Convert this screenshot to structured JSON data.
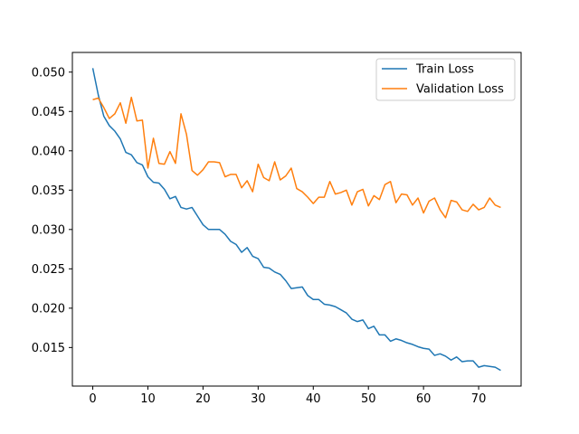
{
  "chart_data": {
    "type": "line",
    "title": "",
    "xlabel": "",
    "ylabel": "",
    "xlim": [
      -3.7,
      77.7
    ],
    "ylim": [
      0.0101,
      0.0525
    ],
    "x_ticks": [
      0,
      10,
      20,
      30,
      40,
      50,
      60,
      70
    ],
    "y_ticks": [
      0.015,
      0.02,
      0.025,
      0.03,
      0.035,
      0.04,
      0.045,
      0.05
    ],
    "x_tick_labels": [
      "0",
      "10",
      "20",
      "30",
      "40",
      "50",
      "60",
      "70"
    ],
    "y_tick_labels": [
      "0.015",
      "0.020",
      "0.025",
      "0.030",
      "0.035",
      "0.040",
      "0.045",
      "0.050"
    ],
    "grid": false,
    "legend": {
      "placement": "top-right"
    },
    "series": [
      {
        "name": "Train Loss",
        "color": "#1f77b4",
        "x": [
          0,
          1,
          2,
          3,
          4,
          5,
          6,
          7,
          8,
          9,
          10,
          11,
          12,
          13,
          14,
          15,
          16,
          17,
          18,
          19,
          20,
          21,
          22,
          23,
          24,
          25,
          26,
          27,
          28,
          29,
          30,
          31,
          32,
          33,
          34,
          35,
          36,
          37,
          38,
          39,
          40,
          41,
          42,
          43,
          44,
          45,
          46,
          47,
          48,
          49,
          50,
          51,
          52,
          53,
          54,
          55,
          56,
          57,
          58,
          59,
          60,
          61,
          62,
          63,
          64,
          65,
          66,
          67,
          68,
          69,
          70,
          71,
          72,
          73,
          74
        ],
        "values": [
          0.0505,
          0.0471,
          0.0444,
          0.0432,
          0.0425,
          0.0415,
          0.0398,
          0.0395,
          0.0385,
          0.0382,
          0.0367,
          0.036,
          0.0359,
          0.0351,
          0.0339,
          0.0342,
          0.0328,
          0.0326,
          0.0328,
          0.0317,
          0.0306,
          0.03,
          0.03,
          0.03,
          0.0294,
          0.0285,
          0.0281,
          0.0271,
          0.0277,
          0.0266,
          0.0263,
          0.0252,
          0.0251,
          0.0246,
          0.0243,
          0.0235,
          0.0225,
          0.0226,
          0.0227,
          0.0216,
          0.0211,
          0.0211,
          0.0205,
          0.0204,
          0.0202,
          0.0198,
          0.0194,
          0.0186,
          0.0183,
          0.0185,
          0.0174,
          0.0177,
          0.0166,
          0.0166,
          0.0158,
          0.0161,
          0.0159,
          0.0156,
          0.0154,
          0.0151,
          0.0149,
          0.0148,
          0.014,
          0.0142,
          0.0139,
          0.0134,
          0.0138,
          0.0132,
          0.0133,
          0.0133,
          0.0125,
          0.0127,
          0.0126,
          0.0125,
          0.0121
        ]
      },
      {
        "name": "Validation Loss",
        "color": "#ff7f0e",
        "x": [
          0,
          1,
          2,
          3,
          4,
          5,
          6,
          7,
          8,
          9,
          10,
          11,
          12,
          13,
          14,
          15,
          16,
          17,
          18,
          19,
          20,
          21,
          22,
          23,
          24,
          25,
          26,
          27,
          28,
          29,
          30,
          31,
          32,
          33,
          34,
          35,
          36,
          37,
          38,
          39,
          40,
          41,
          42,
          43,
          44,
          45,
          46,
          47,
          48,
          49,
          50,
          51,
          52,
          53,
          54,
          55,
          56,
          57,
          58,
          59,
          60,
          61,
          62,
          63,
          64,
          65,
          66,
          67,
          68,
          69,
          70,
          71,
          72,
          73,
          74
        ],
        "values": [
          0.0465,
          0.0467,
          0.0455,
          0.0441,
          0.0447,
          0.0461,
          0.0435,
          0.0468,
          0.0438,
          0.0439,
          0.0378,
          0.0416,
          0.0384,
          0.0383,
          0.0399,
          0.0384,
          0.0447,
          0.0421,
          0.0375,
          0.0369,
          0.0376,
          0.0386,
          0.0386,
          0.0385,
          0.0367,
          0.037,
          0.037,
          0.0353,
          0.0362,
          0.0348,
          0.0383,
          0.0366,
          0.0362,
          0.0386,
          0.0363,
          0.0368,
          0.0378,
          0.0352,
          0.0348,
          0.0341,
          0.0333,
          0.0341,
          0.0341,
          0.0361,
          0.0345,
          0.0347,
          0.035,
          0.0331,
          0.0348,
          0.0351,
          0.033,
          0.0343,
          0.0338,
          0.0357,
          0.0361,
          0.0334,
          0.0345,
          0.0344,
          0.0331,
          0.034,
          0.0321,
          0.0336,
          0.034,
          0.0325,
          0.0315,
          0.0337,
          0.0335,
          0.0325,
          0.0323,
          0.0332,
          0.0325,
          0.0328,
          0.034,
          0.0331,
          0.0328
        ]
      }
    ]
  }
}
